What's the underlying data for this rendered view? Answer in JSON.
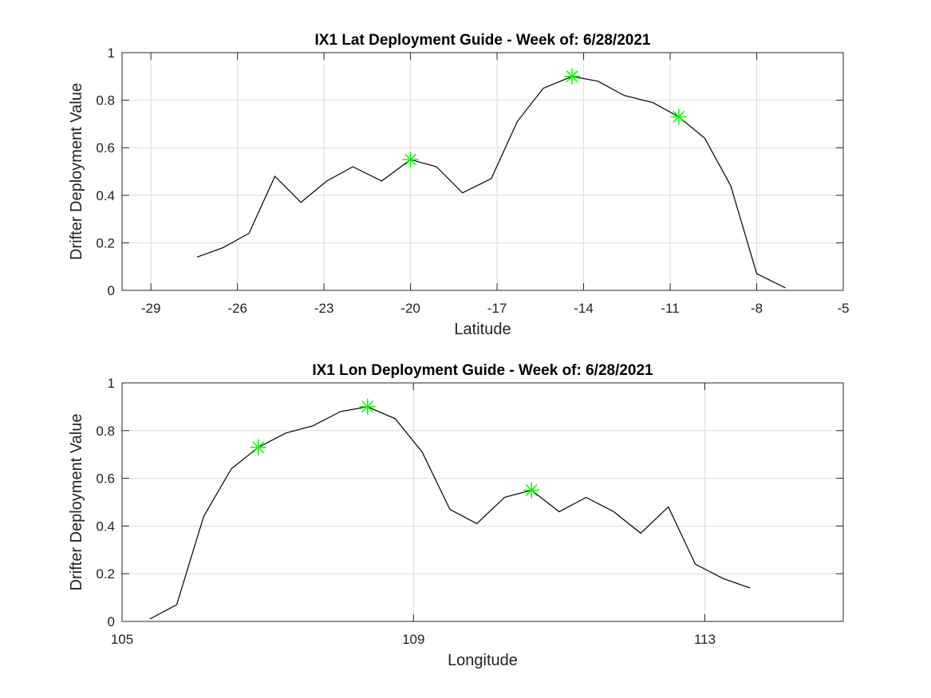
{
  "chart_data": [
    {
      "type": "line",
      "title": "IX1 Lat Deployment Guide - Week of: 6/28/2021",
      "xlabel": "Latitude",
      "ylabel": "Drifter Deployment Value",
      "xlim": [
        -30,
        -5
      ],
      "ylim": [
        0,
        1
      ],
      "xticks": [
        -29,
        -26,
        -23,
        -20,
        -17,
        -14,
        -11,
        -8,
        -5
      ],
      "yticks": [
        0,
        0.2,
        0.4,
        0.6,
        0.8,
        1
      ],
      "xtick_labels": [
        "-29",
        "-26",
        "-23",
        "-20",
        "-17",
        "-14",
        "-11",
        "-8",
        "-5"
      ],
      "ytick_labels": [
        "0",
        "0.2",
        "0.4",
        "0.6",
        "0.8",
        "1"
      ],
      "grid": true,
      "line_color": "#000000",
      "marker_color": "#00ff00",
      "series": [
        {
          "x": [
            -27.4,
            -26.5,
            -25.6,
            -24.7,
            -23.8,
            -22.9,
            -22.0,
            -21.0,
            -20.0,
            -19.1,
            -18.2,
            -17.2,
            -16.3,
            -15.4,
            -14.4,
            -13.5,
            -12.6,
            -11.6,
            -10.7,
            -9.8,
            -8.9,
            -8.0,
            -7.0
          ],
          "y": [
            0.14,
            0.18,
            0.24,
            0.48,
            0.37,
            0.46,
            0.52,
            0.46,
            0.55,
            0.52,
            0.41,
            0.47,
            0.71,
            0.85,
            0.9,
            0.88,
            0.82,
            0.79,
            0.73,
            0.64,
            0.44,
            0.07,
            0.01
          ]
        }
      ],
      "markers": [
        {
          "x": -20.0,
          "y": 0.55
        },
        {
          "x": -14.4,
          "y": 0.9
        },
        {
          "x": -10.7,
          "y": 0.73
        }
      ]
    },
    {
      "type": "line",
      "title": "IX1 Lon Deployment Guide - Week of: 6/28/2021",
      "xlabel": "Longitude",
      "ylabel": "Drifter Deployment Value",
      "xlim": [
        105,
        114.9
      ],
      "ylim": [
        0,
        1
      ],
      "xticks": [
        105,
        109,
        113
      ],
      "yticks": [
        0,
        0.2,
        0.4,
        0.6,
        0.8,
        1
      ],
      "xtick_labels": [
        "105",
        "109",
        "113"
      ],
      "ytick_labels": [
        "0",
        "0.2",
        "0.4",
        "0.6",
        "0.8",
        "1"
      ],
      "grid": true,
      "line_color": "#000000",
      "marker_color": "#00ff00",
      "series": [
        {
          "x": [
            105.38,
            105.75,
            106.12,
            106.5,
            106.87,
            107.25,
            107.62,
            108.0,
            108.37,
            108.75,
            109.12,
            109.5,
            109.87,
            110.25,
            110.62,
            111.0,
            111.37,
            111.75,
            112.12,
            112.5,
            112.87,
            113.25,
            113.62
          ],
          "y": [
            0.01,
            0.07,
            0.44,
            0.64,
            0.73,
            0.79,
            0.82,
            0.88,
            0.9,
            0.85,
            0.71,
            0.47,
            0.41,
            0.52,
            0.55,
            0.46,
            0.52,
            0.46,
            0.37,
            0.48,
            0.24,
            0.18,
            0.14
          ]
        }
      ],
      "markers": [
        {
          "x": 106.87,
          "y": 0.73
        },
        {
          "x": 108.37,
          "y": 0.9
        },
        {
          "x": 110.62,
          "y": 0.55
        }
      ]
    }
  ]
}
